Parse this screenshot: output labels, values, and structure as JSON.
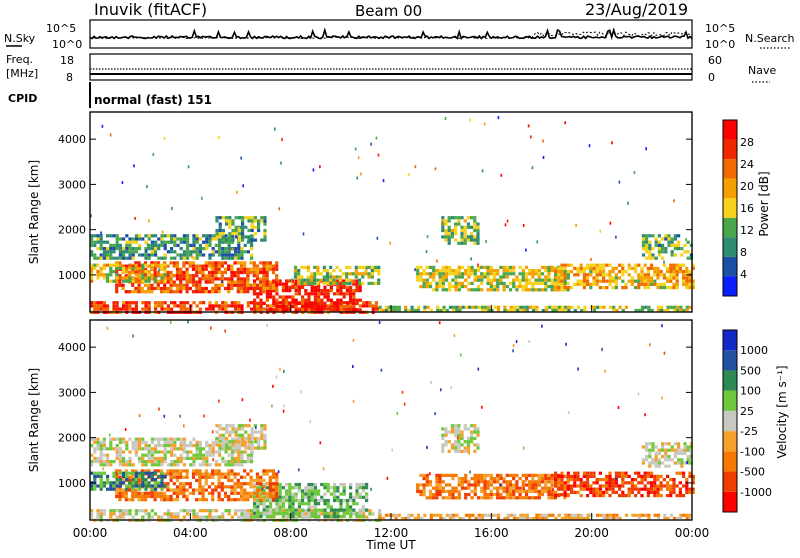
{
  "header": {
    "site": "Inuvik (fitACF)",
    "beam": "Beam 00",
    "date": "23/Aug/2019"
  },
  "noise_panel": {
    "left_label": "N.Sky",
    "right_label": "N.Search",
    "left_ticks": [
      "10^5",
      "10^0"
    ],
    "right_ticks": [
      "10^5",
      "10^0"
    ]
  },
  "freq_panel": {
    "left_label_line1": "Freq.",
    "left_label_line2": "[MHz]",
    "right_label": "Nave",
    "left_ticks": [
      "18",
      "8"
    ],
    "right_ticks": [
      "60",
      "0"
    ]
  },
  "cpid": {
    "label": "CPID",
    "value": "normal (fast) 151"
  },
  "colors": {
    "power": [
      "#0a1eff",
      "#1e4fa6",
      "#2e8a72",
      "#4aa64a",
      "#f5d21c",
      "#f5a000",
      "#f06a00",
      "#f02800",
      "#ff0000"
    ],
    "velocity": [
      "#ff0000",
      "#f03c00",
      "#f57800",
      "#f5a02a",
      "#c8c8c0",
      "#6ec83c",
      "#2e8a52",
      "#2450a0",
      "#1428c8"
    ]
  },
  "chart_data": [
    {
      "type": "heatmap",
      "quantity": "power",
      "ylabel": "Slant Range [km]",
      "yticks": [
        "1000",
        "2000",
        "3000",
        "4000"
      ],
      "ylim": [
        180,
        4600
      ],
      "xlim": [
        0,
        24
      ],
      "colorbar_label": "Power [dB]",
      "colorbar_ticks": [
        "4",
        "8",
        "12",
        "16",
        "20",
        "24",
        "28"
      ],
      "clim": [
        0,
        32
      ],
      "echo_regions": [
        {
          "t0": 0.0,
          "t1": 11.5,
          "r0": 180,
          "r1": 420,
          "level": 0.85
        },
        {
          "t0": 6.5,
          "t1": 10.8,
          "r0": 250,
          "r1": 900,
          "level": 0.95
        },
        {
          "t0": 1.0,
          "t1": 7.5,
          "r0": 600,
          "r1": 1300,
          "level": 0.8
        },
        {
          "t0": 0.0,
          "t1": 3.0,
          "r0": 850,
          "r1": 1250,
          "level": 0.55
        },
        {
          "t0": 0.0,
          "t1": 6.5,
          "r0": 1400,
          "r1": 1900,
          "level": 0.3
        },
        {
          "t0": 5.0,
          "t1": 7.0,
          "r0": 1800,
          "r1": 2300,
          "level": 0.35
        },
        {
          "t0": 8.0,
          "t1": 11.5,
          "r0": 800,
          "r1": 1200,
          "level": 0.45
        },
        {
          "t0": 13.0,
          "t1": 19.0,
          "r0": 700,
          "r1": 1200,
          "level": 0.5
        },
        {
          "t0": 14.0,
          "t1": 15.5,
          "r0": 1700,
          "r1": 2300,
          "level": 0.4
        },
        {
          "t0": 18.5,
          "t1": 24.0,
          "r0": 750,
          "r1": 1250,
          "level": 0.6
        },
        {
          "t0": 22.0,
          "t1": 24.0,
          "r0": 1400,
          "r1": 1900,
          "level": 0.35
        },
        {
          "t0": 11.5,
          "t1": 24.0,
          "r0": 180,
          "r1": 320,
          "level": 0.45
        }
      ]
    },
    {
      "type": "heatmap",
      "quantity": "velocity",
      "ylabel": "Slant Range [km]",
      "yticks": [
        "1000",
        "2000",
        "3000",
        "4000"
      ],
      "ylim": [
        180,
        4600
      ],
      "xlim": [
        0,
        24
      ],
      "xlabel": "Time UT",
      "xticks": [
        "00:00",
        "04:00",
        "08:00",
        "12:00",
        "16:00",
        "20:00",
        "00:00"
      ],
      "colorbar_label": "Velocity [m s⁻¹]",
      "colorbar_ticks": [
        "1000",
        "500",
        "100",
        "25",
        "-25",
        "-100",
        "-500",
        "-1000"
      ],
      "echo_regions": [
        {
          "t0": 0.0,
          "t1": 11.5,
          "r0": 180,
          "r1": 420,
          "vclass": 4
        },
        {
          "t0": 6.5,
          "t1": 11.0,
          "r0": 250,
          "r1": 1000,
          "vclass": 5
        },
        {
          "t0": 1.0,
          "t1": 7.5,
          "r0": 600,
          "r1": 1300,
          "vclass": 2
        },
        {
          "t0": 0.0,
          "t1": 3.0,
          "r0": 850,
          "r1": 1250,
          "vclass": 6
        },
        {
          "t0": 0.0,
          "t1": 6.5,
          "r0": 1400,
          "r1": 2000,
          "vclass": 4
        },
        {
          "t0": 5.0,
          "t1": 7.0,
          "r0": 1800,
          "r1": 2300,
          "vclass": 4
        },
        {
          "t0": 13.0,
          "t1": 19.0,
          "r0": 700,
          "r1": 1200,
          "vclass": 2
        },
        {
          "t0": 14.0,
          "t1": 15.5,
          "r0": 1700,
          "r1": 2300,
          "vclass": 4
        },
        {
          "t0": 18.5,
          "t1": 24.0,
          "r0": 750,
          "r1": 1250,
          "vclass": 1
        },
        {
          "t0": 22.0,
          "t1": 24.0,
          "r0": 1400,
          "r1": 1900,
          "vclass": 4
        },
        {
          "t0": 11.5,
          "t1": 24.0,
          "r0": 180,
          "r1": 320,
          "vclass": 3
        }
      ]
    }
  ]
}
